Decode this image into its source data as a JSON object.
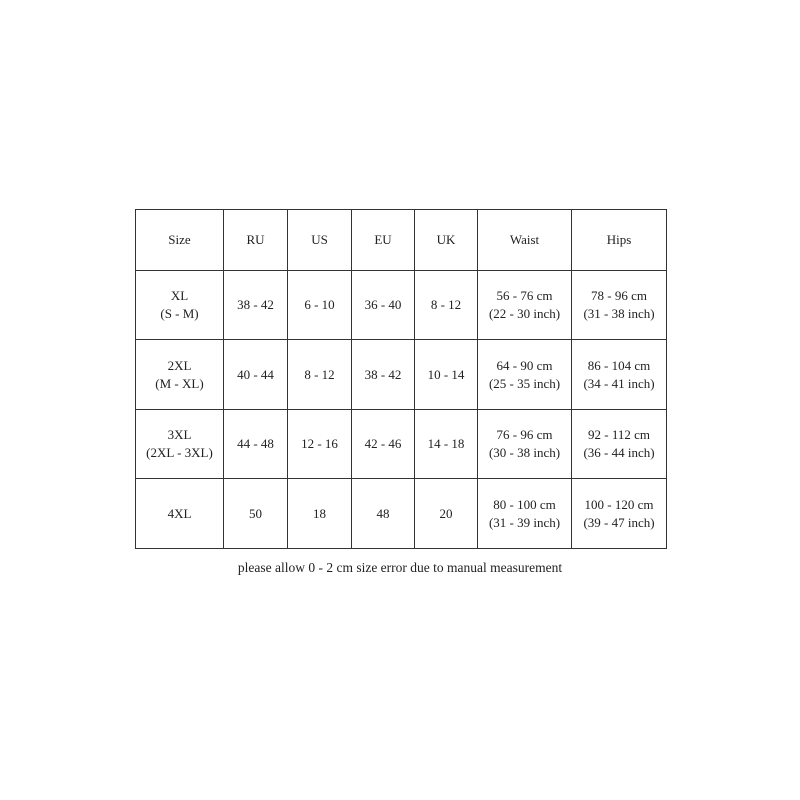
{
  "table": {
    "headers": [
      "Size",
      "RU",
      "US",
      "EU",
      "UK",
      "Waist",
      "Hips"
    ],
    "rows": [
      [
        [
          "XL",
          "(S - M)"
        ],
        [
          "38 - 42"
        ],
        [
          "6 - 10"
        ],
        [
          "36 - 40"
        ],
        [
          "8 - 12"
        ],
        [
          "56 - 76 cm",
          "(22 - 30 inch)"
        ],
        [
          "78 - 96 cm",
          "(31 - 38 inch)"
        ]
      ],
      [
        [
          "2XL",
          "(M - XL)"
        ],
        [
          "40 - 44"
        ],
        [
          "8 - 12"
        ],
        [
          "38 - 42"
        ],
        [
          "10 - 14"
        ],
        [
          "64 - 90 cm",
          "(25 - 35 inch)"
        ],
        [
          "86 - 104 cm",
          "(34 - 41 inch)"
        ]
      ],
      [
        [
          "3XL",
          "(2XL - 3XL)"
        ],
        [
          "44 - 48"
        ],
        [
          "12 - 16"
        ],
        [
          "42 - 46"
        ],
        [
          "14 - 18"
        ],
        [
          "76 - 96 cm",
          "(30 - 38 inch)"
        ],
        [
          "92 - 112 cm",
          "(36 - 44 inch)"
        ]
      ],
      [
        [
          "4XL"
        ],
        [
          "50"
        ],
        [
          "18"
        ],
        [
          "48"
        ],
        [
          "20"
        ],
        [
          "80 - 100 cm",
          "(31 - 39 inch)"
        ],
        [
          "100 - 120 cm",
          "(39 - 47 inch)"
        ]
      ]
    ]
  },
  "caption": "please allow 0 - 2 cm size error due to manual measurement"
}
